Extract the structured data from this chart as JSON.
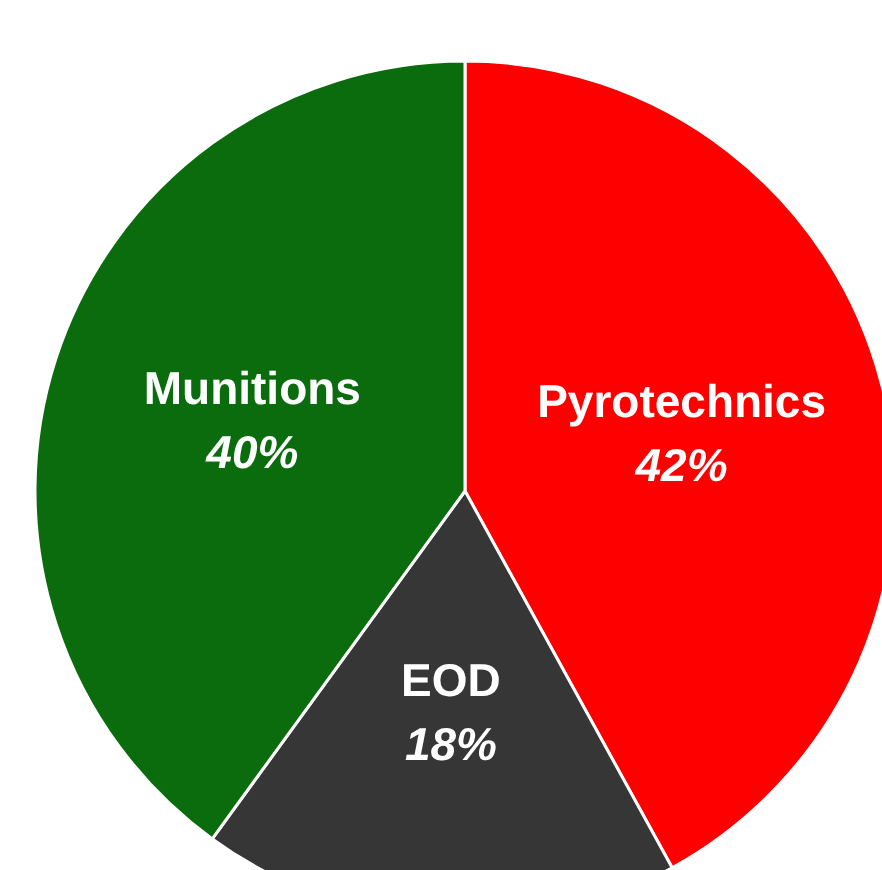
{
  "chart_data": {
    "type": "pie",
    "categories": [
      "Pyrotechnics",
      "EOD",
      "Munitions"
    ],
    "values": [
      42,
      18,
      40
    ],
    "value_labels": [
      "42%",
      "18%",
      "40%"
    ],
    "colors": [
      "#fe0000",
      "#363636",
      "#0b6c0e"
    ]
  }
}
